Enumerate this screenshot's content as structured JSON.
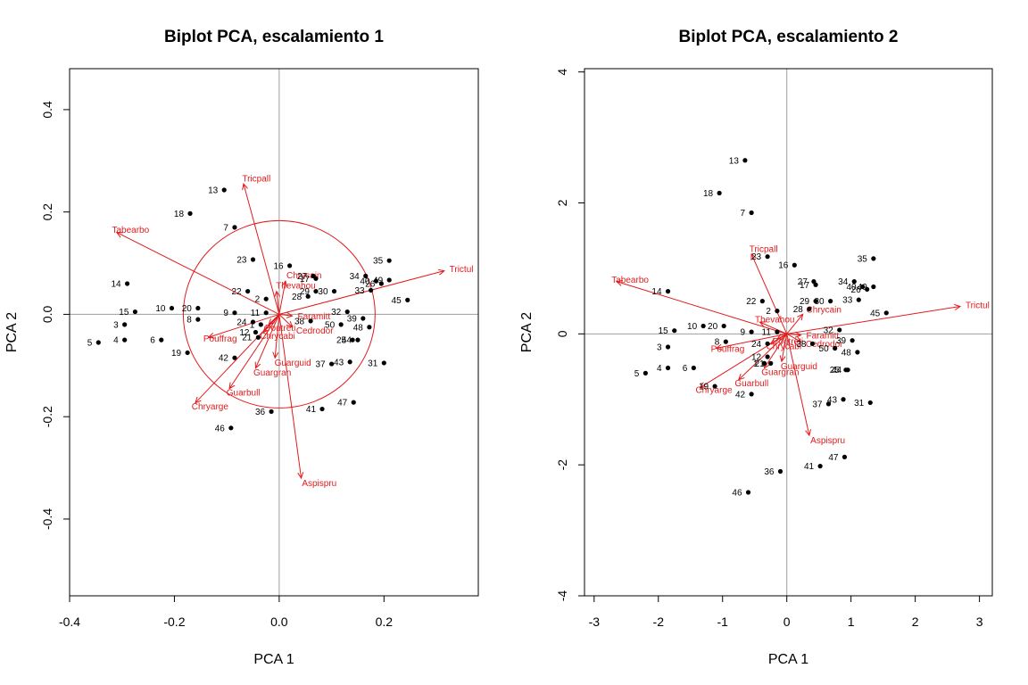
{
  "colors": {
    "arrow": "#e31a1c",
    "point": "#000000",
    "zero_line": "#9e9e9e",
    "frame": "#000000"
  },
  "chart_data": [
    {
      "type": "scatter",
      "title": "Biplot PCA, escalamiento 1",
      "xlabel": "PCA  1",
      "ylabel": "PCA  2",
      "xlim": [
        -0.4,
        0.38
      ],
      "ylim": [
        -0.55,
        0.48
      ],
      "xticks": [
        "-0.4",
        "-0.2",
        "0.0",
        "0.2"
      ],
      "yticks": [
        "-0.4",
        "-0.2",
        "0.0",
        "0.2",
        "0.4"
      ],
      "circle_radius": 0.183,
      "sites": [
        {
          "label": "1",
          "x": -0.035,
          "y": -0.02
        },
        {
          "label": "2",
          "x": -0.025,
          "y": 0.03
        },
        {
          "label": "3",
          "x": -0.295,
          "y": -0.02
        },
        {
          "label": "4",
          "x": -0.295,
          "y": -0.05
        },
        {
          "label": "5",
          "x": -0.345,
          "y": -0.055
        },
        {
          "label": "6",
          "x": -0.225,
          "y": -0.05
        },
        {
          "label": "7",
          "x": -0.085,
          "y": 0.17
        },
        {
          "label": "8",
          "x": -0.155,
          "y": -0.01
        },
        {
          "label": "9",
          "x": -0.085,
          "y": 0.003
        },
        {
          "label": "10",
          "x": -0.205,
          "y": 0.012
        },
        {
          "label": "11",
          "x": -0.025,
          "y": 0.003
        },
        {
          "label": "12",
          "x": -0.045,
          "y": -0.035
        },
        {
          "label": "13",
          "x": -0.105,
          "y": 0.243
        },
        {
          "label": "14",
          "x": -0.29,
          "y": 0.06
        },
        {
          "label": "15",
          "x": -0.275,
          "y": 0.005
        },
        {
          "label": "16",
          "x": 0.02,
          "y": 0.095
        },
        {
          "label": "17",
          "x": 0.07,
          "y": 0.07
        },
        {
          "label": "18",
          "x": -0.17,
          "y": 0.197
        },
        {
          "label": "19",
          "x": -0.175,
          "y": -0.075
        },
        {
          "label": "20",
          "x": -0.155,
          "y": 0.012
        },
        {
          "label": "21",
          "x": -0.04,
          "y": -0.045
        },
        {
          "label": "22",
          "x": -0.06,
          "y": 0.045
        },
        {
          "label": "23",
          "x": -0.05,
          "y": 0.107
        },
        {
          "label": "24",
          "x": -0.05,
          "y": -0.015
        },
        {
          "label": "25",
          "x": 0.14,
          "y": -0.05
        },
        {
          "label": "26",
          "x": 0.195,
          "y": 0.06
        },
        {
          "label": "27",
          "x": 0.065,
          "y": 0.075
        },
        {
          "label": "28",
          "x": 0.055,
          "y": 0.035
        },
        {
          "label": "29",
          "x": 0.07,
          "y": 0.045
        },
        {
          "label": "30",
          "x": 0.105,
          "y": 0.045
        },
        {
          "label": "31",
          "x": 0.2,
          "y": -0.095
        },
        {
          "label": "32",
          "x": 0.13,
          "y": 0.005
        },
        {
          "label": "33",
          "x": 0.175,
          "y": 0.047
        },
        {
          "label": "34",
          "x": 0.165,
          "y": 0.075
        },
        {
          "label": "35",
          "x": 0.21,
          "y": 0.105
        },
        {
          "label": "36",
          "x": -0.015,
          "y": -0.19
        },
        {
          "label": "37",
          "x": 0.1,
          "y": -0.097
        },
        {
          "label": "38",
          "x": 0.06,
          "y": -0.013
        },
        {
          "label": "39",
          "x": 0.16,
          "y": -0.008
        },
        {
          "label": "40",
          "x": 0.185,
          "y": 0.065
        },
        {
          "label": "41",
          "x": 0.082,
          "y": -0.185
        },
        {
          "label": "42",
          "x": -0.085,
          "y": -0.085
        },
        {
          "label": "43",
          "x": 0.135,
          "y": -0.093
        },
        {
          "label": "44",
          "x": 0.15,
          "y": -0.05
        },
        {
          "label": "45",
          "x": 0.245,
          "y": 0.028
        },
        {
          "label": "46",
          "x": -0.092,
          "y": -0.222
        },
        {
          "label": "47",
          "x": 0.142,
          "y": -0.172
        },
        {
          "label": "48",
          "x": 0.172,
          "y": -0.025
        },
        {
          "label": "49",
          "x": 0.21,
          "y": 0.067
        },
        {
          "label": "50",
          "x": 0.118,
          "y": -0.02
        }
      ],
      "species": [
        {
          "label": "Tricpall",
          "x": -0.068,
          "y": 0.255
        },
        {
          "label": "Tabearbo",
          "x": -0.31,
          "y": 0.16
        },
        {
          "label": "Trictul",
          "x": 0.315,
          "y": 0.085
        },
        {
          "label": "Chrycain",
          "x": 0.012,
          "y": 0.065
        },
        {
          "label": "Thevahou",
          "x": -0.005,
          "y": 0.045
        },
        {
          "label": "Pouffrag",
          "x": -0.135,
          "y": -0.045
        },
        {
          "label": "Guarbull",
          "x": -0.095,
          "y": -0.145
        },
        {
          "label": "Chryarge",
          "x": -0.16,
          "y": -0.173
        },
        {
          "label": "Aspispru",
          "x": 0.042,
          "y": -0.32
        },
        {
          "label": "Guarguid",
          "x": -0.008,
          "y": -0.085
        },
        {
          "label": "Guargran",
          "x": -0.045,
          "y": -0.105
        },
        {
          "label": "Faramitt",
          "x": 0.025,
          "y": -0.003
        },
        {
          "label": "Cedrodor",
          "x": 0.025,
          "y": -0.025
        },
        {
          "label": "Poutreti",
          "x": -0.02,
          "y": -0.02
        },
        {
          "label": "Chrycabi",
          "x": -0.03,
          "y": -0.035
        }
      ]
    },
    {
      "type": "scatter",
      "title": "Biplot PCA, escalamiento 2",
      "xlabel": "PCA  1",
      "ylabel": "PCA  2",
      "xlim": [
        -3.15,
        3.2
      ],
      "ylim": [
        -4.0,
        4.05
      ],
      "xticks": [
        "-3",
        "-2",
        "-1",
        "0",
        "1",
        "2",
        "3"
      ],
      "yticks": [
        "-4",
        "-2",
        "0",
        "2",
        "4"
      ],
      "sites": [
        {
          "label": "1",
          "x": -0.35,
          "y": -0.45
        },
        {
          "label": "2",
          "x": -0.15,
          "y": 0.35
        },
        {
          "label": "3",
          "x": -1.85,
          "y": -0.2
        },
        {
          "label": "4",
          "x": -1.85,
          "y": -0.52
        },
        {
          "label": "5",
          "x": -2.2,
          "y": -0.6
        },
        {
          "label": "6",
          "x": -1.45,
          "y": -0.52
        },
        {
          "label": "7",
          "x": -0.55,
          "y": 1.85
        },
        {
          "label": "8",
          "x": -0.95,
          "y": -0.12
        },
        {
          "label": "9",
          "x": -0.55,
          "y": 0.03
        },
        {
          "label": "10",
          "x": -1.3,
          "y": 0.12
        },
        {
          "label": "11",
          "x": -0.15,
          "y": 0.03
        },
        {
          "label": "12",
          "x": -0.3,
          "y": -0.35
        },
        {
          "label": "13",
          "x": -0.65,
          "y": 2.65
        },
        {
          "label": "14",
          "x": -1.85,
          "y": 0.65
        },
        {
          "label": "15",
          "x": -1.75,
          "y": 0.05
        },
        {
          "label": "16",
          "x": 0.12,
          "y": 1.05
        },
        {
          "label": "17",
          "x": 0.45,
          "y": 0.75
        },
        {
          "label": "18",
          "x": -1.05,
          "y": 2.15
        },
        {
          "label": "19",
          "x": -1.12,
          "y": -0.8
        },
        {
          "label": "20",
          "x": -0.98,
          "y": 0.12
        },
        {
          "label": "21",
          "x": -0.25,
          "y": -0.45
        },
        {
          "label": "22",
          "x": -0.38,
          "y": 0.5
        },
        {
          "label": "23",
          "x": -0.3,
          "y": 1.18
        },
        {
          "label": "24",
          "x": -0.3,
          "y": -0.15
        },
        {
          "label": "25",
          "x": 0.92,
          "y": -0.55
        },
        {
          "label": "26",
          "x": 1.25,
          "y": 0.68
        },
        {
          "label": "27",
          "x": 0.42,
          "y": 0.8
        },
        {
          "label": "28",
          "x": 0.35,
          "y": 0.38
        },
        {
          "label": "29",
          "x": 0.45,
          "y": 0.5
        },
        {
          "label": "30",
          "x": 0.68,
          "y": 0.5
        },
        {
          "label": "31",
          "x": 1.3,
          "y": -1.05
        },
        {
          "label": "32",
          "x": 0.82,
          "y": 0.06
        },
        {
          "label": "33",
          "x": 1.12,
          "y": 0.52
        },
        {
          "label": "34",
          "x": 1.05,
          "y": 0.8
        },
        {
          "label": "35",
          "x": 1.35,
          "y": 1.15
        },
        {
          "label": "36",
          "x": -0.1,
          "y": -2.1
        },
        {
          "label": "37",
          "x": 0.65,
          "y": -1.07
        },
        {
          "label": "38",
          "x": 0.4,
          "y": -0.15
        },
        {
          "label": "39",
          "x": 1.02,
          "y": -0.1
        },
        {
          "label": "40",
          "x": 1.18,
          "y": 0.72
        },
        {
          "label": "41",
          "x": 0.52,
          "y": -2.02
        },
        {
          "label": "42",
          "x": -0.55,
          "y": -0.92
        },
        {
          "label": "43",
          "x": 0.88,
          "y": -1.0
        },
        {
          "label": "44",
          "x": 0.95,
          "y": -0.55
        },
        {
          "label": "45",
          "x": 1.55,
          "y": 0.32
        },
        {
          "label": "46",
          "x": -0.6,
          "y": -2.42
        },
        {
          "label": "47",
          "x": 0.9,
          "y": -1.88
        },
        {
          "label": "48",
          "x": 1.1,
          "y": -0.28
        },
        {
          "label": "49",
          "x": 1.35,
          "y": 0.72
        },
        {
          "label": "50",
          "x": 0.75,
          "y": -0.22
        }
      ],
      "species": [
        {
          "label": "Tricpall",
          "x": -0.55,
          "y": 1.22
        },
        {
          "label": "Tabearbo",
          "x": -2.65,
          "y": 0.8
        },
        {
          "label": "Trictul",
          "x": 2.7,
          "y": 0.42
        },
        {
          "label": "Chrycain",
          "x": 0.25,
          "y": 0.3
        },
        {
          "label": "Thevahou",
          "x": -0.42,
          "y": 0.18
        },
        {
          "label": "Pouffrag",
          "x": -1.1,
          "y": -0.22
        },
        {
          "label": "Guarbull",
          "x": -0.75,
          "y": -0.7
        },
        {
          "label": "Chryarge",
          "x": -1.35,
          "y": -0.82
        },
        {
          "label": "Aspispru",
          "x": 0.35,
          "y": -1.55
        },
        {
          "label": "Guarguid",
          "x": -0.08,
          "y": -0.42
        },
        {
          "label": "Guargran",
          "x": -0.35,
          "y": -0.52
        },
        {
          "label": "Faramitt",
          "x": 0.22,
          "y": -0.02
        },
        {
          "label": "Cedrodor",
          "x": 0.22,
          "y": -0.12
        },
        {
          "label": "Poutreti",
          "x": -0.15,
          "y": -0.08
        },
        {
          "label": "Chrycabi",
          "x": -0.25,
          "y": -0.15
        }
      ]
    }
  ]
}
